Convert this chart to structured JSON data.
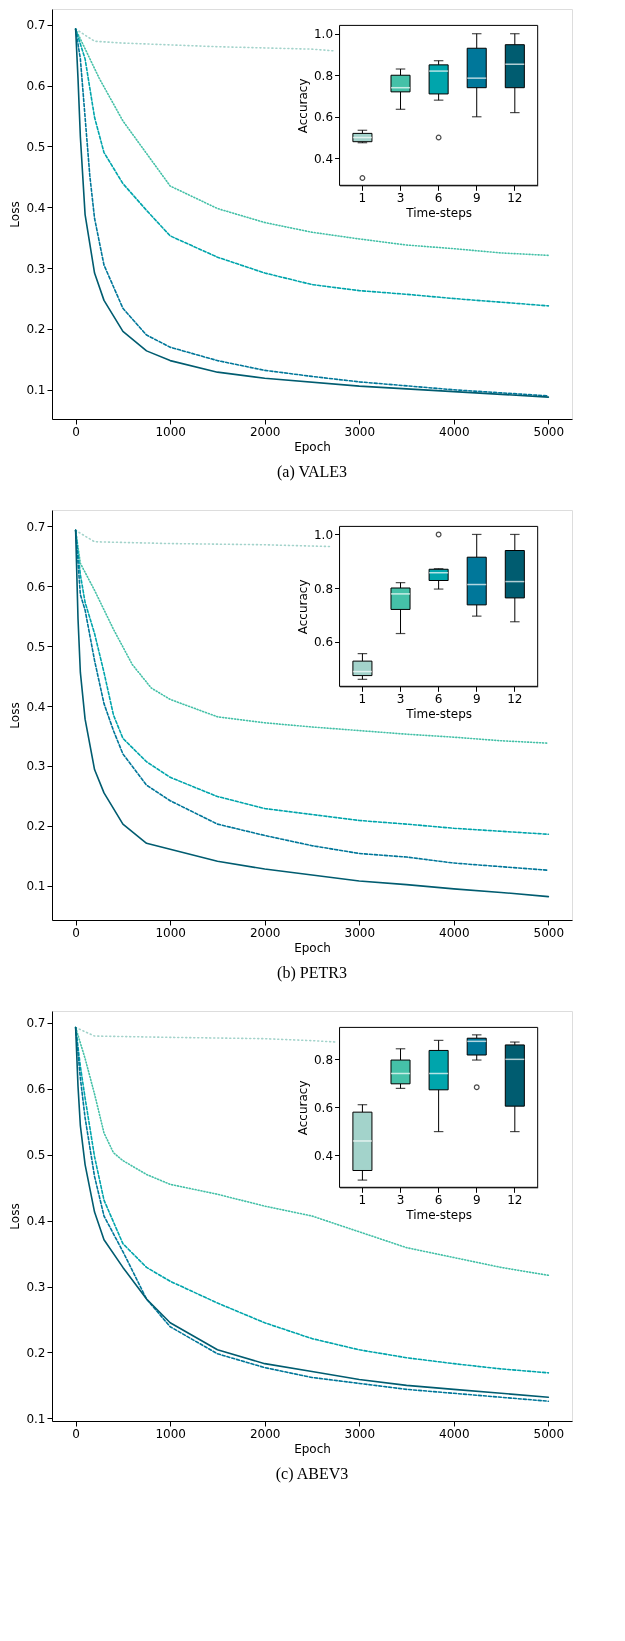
{
  "chart_data": [
    {
      "type": "line",
      "title": "(a) VALE3",
      "xlabel": "Epoch",
      "ylabel": "Loss",
      "xlim": [
        -250,
        5250
      ],
      "ylim": [
        0.052,
        0.726
      ],
      "xticks": [
        0,
        1000,
        2000,
        3000,
        4000,
        5000
      ],
      "yticks": [
        0.1,
        0.2,
        0.3,
        0.4,
        0.5,
        0.6,
        0.7
      ],
      "series": [
        {
          "color": "#a3d3cb",
          "line_style": "dotted",
          "x": [
            0,
            200,
            500,
            1000,
            1500,
            2000,
            2500,
            2750
          ],
          "values": [
            0.693,
            0.673,
            0.67,
            0.667,
            0.664,
            0.662,
            0.66,
            0.657
          ]
        },
        {
          "color": "#45c1a8",
          "line_style": "dotted",
          "x": [
            0,
            250,
            500,
            1000,
            1500,
            2000,
            2500,
            3000,
            3500,
            4000,
            4500,
            5000
          ],
          "values": [
            0.693,
            0.612,
            0.542,
            0.435,
            0.398,
            0.375,
            0.359,
            0.348,
            0.338,
            0.332,
            0.325,
            0.321
          ]
        },
        {
          "color": "#00a5ac",
          "line_style": "dashed",
          "x": [
            0,
            100,
            200,
            300,
            500,
            750,
            1000,
            1500,
            2000,
            2500,
            3000,
            3500,
            4000,
            4500,
            5000
          ],
          "values": [
            0.693,
            0.644,
            0.548,
            0.49,
            0.439,
            0.395,
            0.353,
            0.318,
            0.292,
            0.273,
            0.263,
            0.257,
            0.25,
            0.244,
            0.238
          ]
        },
        {
          "color": "#00779a",
          "line_style": "dashed",
          "x": [
            0,
            50,
            100,
            150,
            200,
            300,
            500,
            750,
            1000,
            1500,
            2000,
            2500,
            3000,
            4000,
            5000
          ],
          "values": [
            0.693,
            0.644,
            0.548,
            0.452,
            0.382,
            0.305,
            0.234,
            0.19,
            0.17,
            0.148,
            0.132,
            0.122,
            0.113,
            0.1,
            0.09
          ]
        },
        {
          "color": "#005c70",
          "line_style": "solid",
          "x": [
            0,
            25,
            50,
            100,
            200,
            300,
            500,
            750,
            1000,
            1500,
            2000,
            3000,
            4000,
            5000
          ],
          "values": [
            0.693,
            0.612,
            0.516,
            0.388,
            0.292,
            0.247,
            0.196,
            0.164,
            0.148,
            0.129,
            0.119,
            0.106,
            0.097,
            0.088
          ]
        }
      ]
    },
    {
      "type": "box",
      "xlabel": "Time-steps",
      "ylabel": "Accuracy",
      "categories": [
        "1",
        "3",
        "6",
        "9",
        "12"
      ],
      "colors": [
        "#a3d3cb",
        "#45c1a8",
        "#00a5ac",
        "#00779a",
        "#005c70"
      ],
      "ylim": [
        0.27,
        1.04
      ],
      "yticks": [
        0.4,
        0.6,
        0.8,
        {
          "value": 1.0,
          "label": "1.0"
        }
      ],
      "boxes": [
        {
          "low": 0.475,
          "q1": 0.48,
          "median": 0.5,
          "q3": 0.52,
          "high": 0.535,
          "outliers": [
            0.305
          ]
        },
        {
          "low": 0.636,
          "q1": 0.72,
          "median": 0.74,
          "q3": 0.8,
          "high": 0.83
        },
        {
          "low": 0.68,
          "q1": 0.71,
          "median": 0.82,
          "q3": 0.85,
          "high": 0.87,
          "outliers": [
            0.5
          ]
        },
        {
          "low": 0.6,
          "q1": 0.74,
          "median": 0.786,
          "q3": 0.93,
          "high": 1.0
        },
        {
          "low": 0.62,
          "q1": 0.74,
          "median": 0.853,
          "q3": 0.947,
          "high": 1.0
        }
      ]
    },
    {
      "type": "line",
      "title": "(b) PETR3",
      "xlabel": "Epoch",
      "ylabel": "Loss",
      "xlim": [
        -250,
        5250
      ],
      "ylim": [
        0.043,
        0.727
      ],
      "xticks": [
        0,
        1000,
        2000,
        3000,
        4000,
        5000
      ],
      "yticks": [
        0.1,
        0.2,
        0.3,
        0.4,
        0.5,
        0.6,
        0.7
      ],
      "series": [
        {
          "color": "#a3d3cb",
          "line_style": "dotted",
          "x": [
            0,
            200,
            1000,
            2000,
            2700
          ],
          "values": [
            0.693,
            0.674,
            0.671,
            0.669,
            0.666
          ]
        },
        {
          "color": "#45c1a8",
          "line_style": "dotted",
          "x": [
            0,
            50,
            200,
            400,
            600,
            800,
            1000,
            1500,
            2000,
            2500,
            3000,
            3500,
            4000,
            4500,
            5000
          ],
          "values": [
            0.693,
            0.638,
            0.593,
            0.528,
            0.469,
            0.43,
            0.411,
            0.382,
            0.372,
            0.365,
            0.359,
            0.353,
            0.348,
            0.342,
            0.338
          ]
        },
        {
          "color": "#00a5ac",
          "line_style": "dashed",
          "x": [
            0,
            50,
            100,
            200,
            300,
            400,
            500,
            750,
            1000,
            1500,
            2000,
            2500,
            3000,
            3500,
            4000,
            4500,
            5000
          ],
          "values": [
            0.693,
            0.619,
            0.573,
            0.521,
            0.456,
            0.385,
            0.346,
            0.307,
            0.281,
            0.249,
            0.229,
            0.219,
            0.209,
            0.203,
            0.196,
            0.191,
            0.186
          ]
        },
        {
          "color": "#00779a",
          "line_style": "dashed",
          "x": [
            0,
            50,
            100,
            200,
            300,
            400,
            500,
            750,
            1000,
            1500,
            2000,
            2500,
            3000,
            3500,
            4000,
            4500,
            5000
          ],
          "values": [
            0.693,
            0.586,
            0.56,
            0.476,
            0.404,
            0.359,
            0.32,
            0.268,
            0.242,
            0.203,
            0.184,
            0.167,
            0.154,
            0.148,
            0.138,
            0.132,
            0.126
          ]
        },
        {
          "color": "#005c70",
          "line_style": "solid",
          "x": [
            0,
            25,
            50,
            100,
            200,
            300,
            500,
            750,
            1000,
            1500,
            2000,
            2500,
            3000,
            3500,
            4000,
            4500,
            5000
          ],
          "values": [
            0.693,
            0.546,
            0.456,
            0.378,
            0.294,
            0.255,
            0.203,
            0.171,
            0.161,
            0.141,
            0.128,
            0.118,
            0.108,
            0.102,
            0.095,
            0.089,
            0.082
          ]
        }
      ]
    },
    {
      "type": "box",
      "xlabel": "Time-steps",
      "ylabel": "Accuracy",
      "categories": [
        "1",
        "3",
        "6",
        "9",
        "12"
      ],
      "colors": [
        "#a3d3cb",
        "#45c1a8",
        "#00a5ac",
        "#00779a",
        "#005c70"
      ],
      "ylim": [
        0.433,
        1.03
      ],
      "yticks": [
        0.6,
        0.8,
        {
          "value": 1.0,
          "label": "1.0"
        }
      ],
      "boxes": [
        {
          "low": 0.459,
          "q1": 0.473,
          "median": 0.488,
          "q3": 0.527,
          "high": 0.555
        },
        {
          "low": 0.63,
          "q1": 0.72,
          "median": 0.778,
          "q3": 0.8,
          "high": 0.82
        },
        {
          "low": 0.796,
          "q1": 0.828,
          "median": 0.857,
          "q3": 0.87,
          "high": 0.872,
          "outliers": [
            1.0
          ]
        },
        {
          "low": 0.695,
          "q1": 0.737,
          "median": 0.813,
          "q3": 0.915,
          "high": 1.0
        },
        {
          "low": 0.674,
          "q1": 0.763,
          "median": 0.824,
          "q3": 0.94,
          "high": 1.0
        }
      ]
    },
    {
      "type": "line",
      "title": "(c) ABEV3",
      "xlabel": "Epoch",
      "ylabel": "Loss",
      "xlim": [
        -250,
        5250
      ],
      "ylim": [
        0.096,
        0.718
      ],
      "xticks": [
        0,
        1000,
        2000,
        3000,
        4000,
        5000
      ],
      "yticks": [
        0.1,
        0.2,
        0.3,
        0.4,
        0.5,
        0.6,
        0.7
      ],
      "series": [
        {
          "color": "#a3d3cb",
          "line_style": "dotted",
          "x": [
            0,
            200,
            1000,
            2000,
            2500,
            2750
          ],
          "values": [
            0.693,
            0.68,
            0.678,
            0.676,
            0.673,
            0.671
          ]
        },
        {
          "color": "#45c1a8",
          "line_style": "dotted",
          "x": [
            0,
            100,
            200,
            300,
            400,
            500,
            750,
            1000,
            1500,
            2000,
            2500,
            3000,
            3500,
            4000,
            4500,
            5000
          ],
          "values": [
            0.693,
            0.646,
            0.592,
            0.533,
            0.503,
            0.491,
            0.47,
            0.455,
            0.44,
            0.422,
            0.407,
            0.383,
            0.359,
            0.344,
            0.329,
            0.317
          ]
        },
        {
          "color": "#00a5ac",
          "line_style": "dashed",
          "x": [
            0,
            50,
            100,
            200,
            300,
            500,
            750,
            1000,
            1500,
            2000,
            2500,
            3000,
            3500,
            4000,
            4500,
            5000
          ],
          "values": [
            0.693,
            0.634,
            0.586,
            0.497,
            0.431,
            0.365,
            0.329,
            0.308,
            0.275,
            0.245,
            0.221,
            0.204,
            0.192,
            0.183,
            0.175,
            0.169
          ]
        },
        {
          "color": "#00779a",
          "line_style": "dashed",
          "x": [
            0,
            50,
            100,
            200,
            300,
            500,
            750,
            1000,
            1500,
            2000,
            2500,
            3000,
            3500,
            4000,
            4500,
            5000
          ],
          "values": [
            0.693,
            0.616,
            0.556,
            0.467,
            0.407,
            0.353,
            0.281,
            0.239,
            0.198,
            0.177,
            0.162,
            0.153,
            0.144,
            0.138,
            0.132,
            0.126
          ]
        },
        {
          "color": "#005c70",
          "line_style": "solid",
          "x": [
            0,
            25,
            50,
            100,
            200,
            300,
            500,
            750,
            1000,
            1500,
            2000,
            2500,
            3000,
            3500,
            4000,
            4500,
            5000
          ],
          "values": [
            0.693,
            0.604,
            0.544,
            0.485,
            0.413,
            0.371,
            0.329,
            0.281,
            0.245,
            0.204,
            0.183,
            0.171,
            0.159,
            0.15,
            0.144,
            0.138,
            0.132
          ]
        }
      ]
    },
    {
      "type": "box",
      "xlabel": "Time-steps",
      "ylabel": "Accuracy",
      "categories": [
        "1",
        "3",
        "6",
        "9",
        "12"
      ],
      "colors": [
        "#a3d3cb",
        "#45c1a8",
        "#00a5ac",
        "#00779a",
        "#005c70"
      ],
      "ylim": [
        0.267,
        0.933
      ],
      "yticks": [
        0.4,
        0.6,
        0.8
      ],
      "boxes": [
        {
          "low": 0.297,
          "q1": 0.337,
          "median": 0.46,
          "q3": 0.58,
          "high": 0.611
        },
        {
          "low": 0.679,
          "q1": 0.698,
          "median": 0.741,
          "q3": 0.797,
          "high": 0.844
        },
        {
          "low": 0.499,
          "q1": 0.673,
          "median": 0.741,
          "q3": 0.837,
          "high": 0.879
        },
        {
          "low": 0.797,
          "q1": 0.818,
          "median": 0.875,
          "q3": 0.888,
          "high": 0.902,
          "outliers": [
            0.684
          ]
        },
        {
          "low": 0.499,
          "q1": 0.605,
          "median": 0.8,
          "q3": 0.86,
          "high": 0.872
        }
      ]
    }
  ]
}
